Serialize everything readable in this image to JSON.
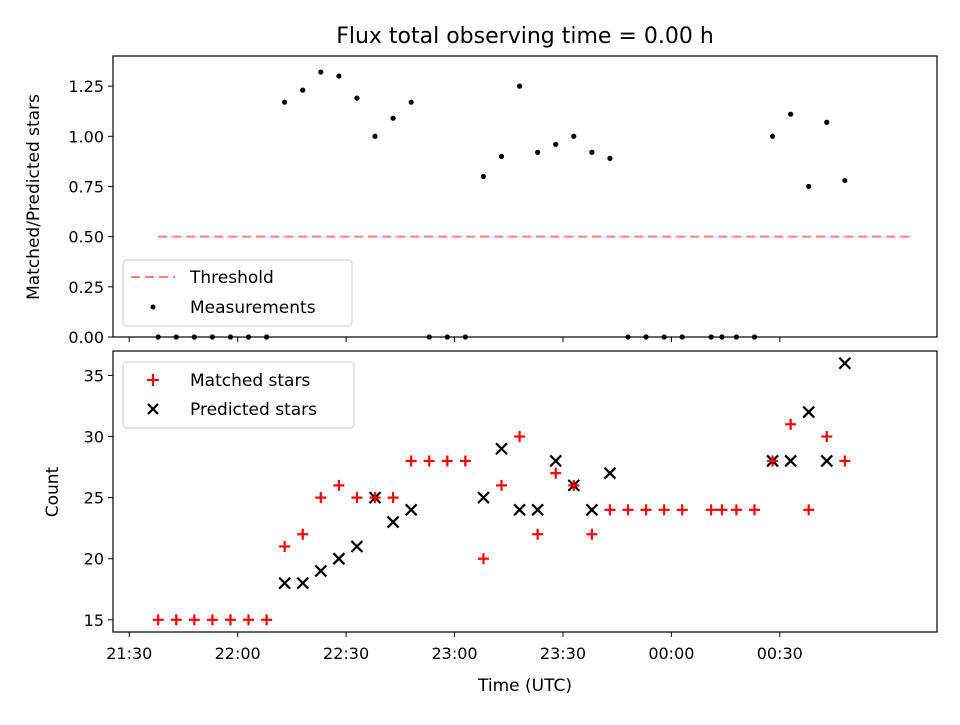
{
  "chart_data": [
    {
      "type": "scatter",
      "title": "Flux total observing time = 0.00 h",
      "ylabel": "Matched/Predicted stars",
      "xlabel": "",
      "ylim": [
        0,
        1.4
      ],
      "yticks": [
        0,
        0.25,
        0.5,
        0.75,
        1.0,
        1.25
      ],
      "ytick_labels": [
        "0.00",
        "0.25",
        "0.50",
        "0.75",
        "1.00",
        "1.25"
      ],
      "xlim": [
        "21:28",
        "23:00 +1 min offset range end 01:08"
      ],
      "grid": false,
      "legend_position": "lower-left",
      "series": [
        {
          "name": "Threshold",
          "kind": "line",
          "style": "dashed",
          "color": "#ff7f7f",
          "x": [
            "21:38",
            "01:07"
          ],
          "y": [
            0.5,
            0.5
          ]
        },
        {
          "name": "Measurements",
          "kind": "scatter",
          "marker": "dot",
          "color": "#000000",
          "x": [
            "21:38",
            "21:43",
            "21:48",
            "21:53",
            "21:58",
            "22:03",
            "22:08",
            "22:13",
            "22:18",
            "22:23",
            "22:28",
            "22:33",
            "22:38",
            "22:43",
            "22:48",
            "22:53",
            "22:58",
            "23:03",
            "23:08",
            "23:13",
            "23:18",
            "23:23",
            "23:28",
            "23:33",
            "23:38",
            "23:43",
            "23:48",
            "23:53",
            "23:58",
            "00:03",
            "00:11",
            "00:14",
            "00:18",
            "00:23",
            "00:28",
            "00:33",
            "00:38",
            "00:43",
            "00:48"
          ],
          "y": [
            0,
            0,
            0,
            0,
            0,
            0,
            0,
            1.17,
            1.23,
            1.32,
            1.3,
            1.19,
            1.0,
            1.09,
            1.17,
            0,
            0,
            0,
            0.8,
            0.9,
            1.25,
            0.92,
            0.96,
            1.0,
            0.92,
            0.89,
            0,
            0,
            0,
            0,
            0,
            0,
            0,
            0,
            1.0,
            1.11,
            0.75,
            1.07,
            0.78
          ]
        }
      ]
    },
    {
      "type": "scatter",
      "title": "",
      "ylabel": "Count",
      "xlabel": "Time (UTC)",
      "ylim": [
        14,
        37
      ],
      "yticks": [
        15,
        20,
        25,
        30,
        35
      ],
      "xtick_labels": [
        "21:30",
        "22:00",
        "22:30",
        "23:00",
        "23:30",
        "00:00",
        "00:30"
      ],
      "grid": false,
      "legend_position": "top-left",
      "series": [
        {
          "name": "Matched stars",
          "kind": "scatter",
          "marker": "plus",
          "color": "#ff0000",
          "x": [
            "21:38",
            "21:43",
            "21:48",
            "21:53",
            "21:58",
            "22:03",
            "22:08",
            "22:13",
            "22:18",
            "22:23",
            "22:28",
            "22:33",
            "22:38",
            "22:43",
            "22:48",
            "22:53",
            "22:58",
            "23:03",
            "23:08",
            "23:13",
            "23:18",
            "23:23",
            "23:28",
            "23:33",
            "23:38",
            "23:43",
            "23:48",
            "23:53",
            "23:58",
            "00:03",
            "00:11",
            "00:14",
            "00:18",
            "00:23",
            "00:28",
            "00:33",
            "00:38",
            "00:43",
            "00:48"
          ],
          "y": [
            15,
            15,
            15,
            15,
            15,
            15,
            15,
            21,
            22,
            25,
            26,
            25,
            25,
            25,
            28,
            28,
            28,
            28,
            20,
            26,
            30,
            22,
            27,
            26,
            22,
            24,
            24,
            24,
            24,
            24,
            24,
            24,
            24,
            24,
            28,
            31,
            24,
            30,
            28
          ]
        },
        {
          "name": "Predicted stars",
          "kind": "scatter",
          "marker": "x",
          "color": "#000000",
          "x": [
            "22:13",
            "22:18",
            "22:23",
            "22:28",
            "22:33",
            "22:38",
            "22:43",
            "22:48",
            "23:08",
            "23:13",
            "23:18",
            "23:23",
            "23:28",
            "23:33",
            "23:38",
            "23:43",
            "00:28",
            "00:33",
            "00:38",
            "00:43",
            "00:48"
          ],
          "y": [
            18,
            18,
            19,
            20,
            21,
            25,
            23,
            24,
            25,
            29,
            24,
            24,
            28,
            26,
            24,
            27,
            28,
            28,
            32,
            28,
            36
          ]
        }
      ]
    }
  ],
  "legend": {
    "threshold_label": "Threshold",
    "measurements_label": "Measurements",
    "matched_label": "Matched stars",
    "predicted_label": "Predicted stars"
  }
}
